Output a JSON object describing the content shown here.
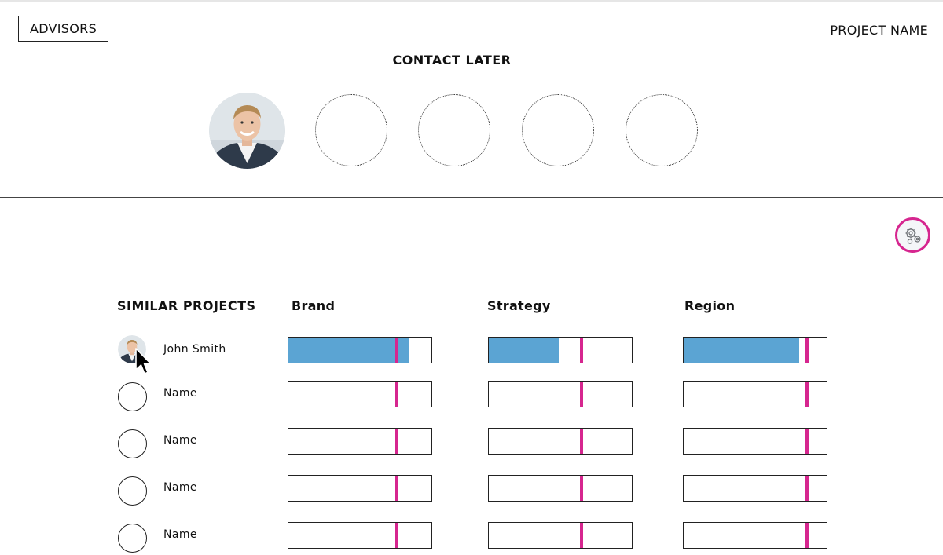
{
  "header": {
    "advisors_label": "ADVISORS",
    "project_name": "PROJECT NAME"
  },
  "contact_later": {
    "title": "CONTACT LATER",
    "slots": [
      "photo",
      "empty",
      "empty",
      "empty",
      "empty"
    ]
  },
  "similar_projects": {
    "title": "SIMILAR PROJECTS",
    "columns": [
      "Brand",
      "Strategy",
      "Region"
    ],
    "rows": [
      {
        "name": "John Smith",
        "has_photo": true,
        "scores": [
          {
            "fill": 0.84,
            "marker": 0.76
          },
          {
            "fill": 0.49,
            "marker": 0.65
          },
          {
            "fill": 0.81,
            "marker": 0.86
          }
        ]
      },
      {
        "name": "Name",
        "has_photo": false,
        "scores": [
          {
            "fill": 0,
            "marker": 0.76
          },
          {
            "fill": 0,
            "marker": 0.65
          },
          {
            "fill": 0,
            "marker": 0.86
          }
        ]
      },
      {
        "name": "Name",
        "has_photo": false,
        "scores": [
          {
            "fill": 0,
            "marker": 0.76
          },
          {
            "fill": 0,
            "marker": 0.65
          },
          {
            "fill": 0,
            "marker": 0.86
          }
        ]
      },
      {
        "name": "Name",
        "has_photo": false,
        "scores": [
          {
            "fill": 0,
            "marker": 0.76
          },
          {
            "fill": 0,
            "marker": 0.65
          },
          {
            "fill": 0,
            "marker": 0.86
          }
        ]
      },
      {
        "name": "Name",
        "has_photo": false,
        "scores": [
          {
            "fill": 0,
            "marker": 0.76
          },
          {
            "fill": 0,
            "marker": 0.65
          },
          {
            "fill": 0,
            "marker": 0.86
          }
        ]
      }
    ]
  },
  "icons": {
    "settings": "gears-icon",
    "cursor": "mouse-pointer-icon"
  },
  "colors": {
    "accent": "#d6268f",
    "bar_fill": "#5ba4d3"
  }
}
